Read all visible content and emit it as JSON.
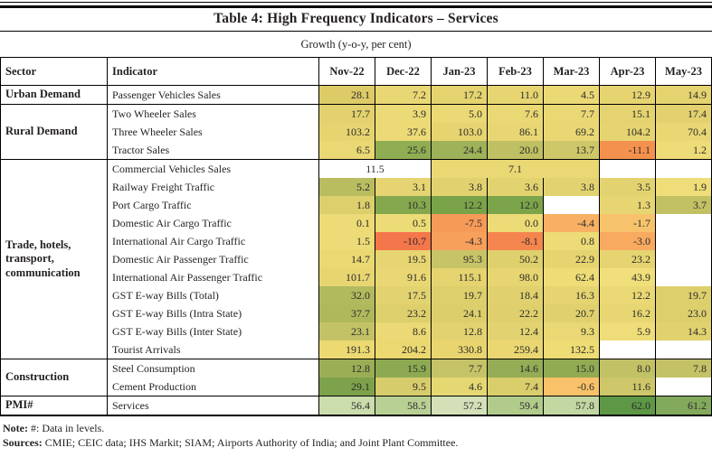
{
  "title": "Table 4: High Frequency Indicators – Services",
  "subtitle": "Growth (y-o-y, per cent)",
  "colors": {
    "border": "#000000",
    "text": "#231f20",
    "heat_green_dark": "#5e9745",
    "heat_green": "#7da24b",
    "heat_olive": "#b2ba5e",
    "heat_yellow": "#e7d571",
    "heat_orange": "#f5914e",
    "heat_red_orange": "#f4764b"
  },
  "table": {
    "columns": [
      "Sector",
      "Indicator",
      "Nov-22",
      "Dec-22",
      "Jan-23",
      "Feb-23",
      "Mar-23",
      "Apr-23",
      "May-23"
    ],
    "groups": [
      {
        "sector": "Urban Demand",
        "rows": [
          {
            "indicator": "Passenger Vehicles Sales",
            "cells": [
              {
                "value": "28.1",
                "color": "#ddcb68"
              },
              {
                "value": "7.2",
                "color": "#e9d773"
              },
              {
                "value": "17.2",
                "color": "#e4d36f"
              },
              {
                "value": "11.0",
                "color": "#e7d571"
              },
              {
                "value": "4.5",
                "color": "#ebd975"
              },
              {
                "value": "12.9",
                "color": "#e6d470"
              },
              {
                "value": "14.9",
                "color": "#e5d370"
              }
            ]
          }
        ]
      },
      {
        "sector": "Rural Demand",
        "rows": [
          {
            "indicator": "Two Wheeler Sales",
            "cells": [
              {
                "value": "17.7",
                "color": "#e2d16e"
              },
              {
                "value": "3.9",
                "color": "#ecda76"
              },
              {
                "value": "5.0",
                "color": "#ebd975"
              },
              {
                "value": "7.6",
                "color": "#ead874"
              },
              {
                "value": "7.7",
                "color": "#ead874"
              },
              {
                "value": "15.1",
                "color": "#e4d370"
              },
              {
                "value": "17.4",
                "color": "#e2d16e"
              }
            ]
          },
          {
            "indicator": "Three Wheeler Sales",
            "cells": [
              {
                "value": "103.2",
                "color": "#e6d471"
              },
              {
                "value": "37.6",
                "color": "#ecda76"
              },
              {
                "value": "103.0",
                "color": "#e6d471"
              },
              {
                "value": "86.1",
                "color": "#e8d673"
              },
              {
                "value": "69.2",
                "color": "#e9d774"
              },
              {
                "value": "104.2",
                "color": "#e6d471"
              },
              {
                "value": "70.4",
                "color": "#e9d774"
              }
            ]
          },
          {
            "indicator": "Tractor Sales",
            "cells": [
              {
                "value": "6.5",
                "color": "#e9d873"
              },
              {
                "value": "25.6",
                "color": "#8fae53"
              },
              {
                "value": "24.4",
                "color": "#9eb259"
              },
              {
                "value": "20.0",
                "color": "#bfbf63"
              },
              {
                "value": "13.7",
                "color": "#cdc769"
              },
              {
                "value": "-11.1",
                "color": "#f5914e"
              },
              {
                "value": "1.2",
                "color": "#eddc77"
              }
            ]
          }
        ]
      },
      {
        "sector": "Trade, hotels, transport, communication",
        "rows": [
          {
            "indicator": "Commercial Vehicles Sales",
            "merged": [
              {
                "span": 2,
                "value": "11.5",
                "color": null
              },
              {
                "span": 3,
                "value": "7.1",
                "color": "#e9d873"
              },
              {
                "span": 1,
                "value": "",
                "color": null
              },
              {
                "span": 1,
                "value": "",
                "color": null
              }
            ]
          },
          {
            "indicator": "Railway Freight Traffic",
            "cells": [
              {
                "value": "5.2",
                "color": "#b9bd60"
              },
              {
                "value": "3.1",
                "color": "#e5d471"
              },
              {
                "value": "3.8",
                "color": "#e2d26f"
              },
              {
                "value": "3.6",
                "color": "#e3d370"
              },
              {
                "value": "3.8",
                "color": "#e3d370"
              },
              {
                "value": "3.5",
                "color": "#e3d370"
              },
              {
                "value": "1.9",
                "color": "#eedd78"
              }
            ]
          },
          {
            "indicator": "Port Cargo Traffic",
            "cells": [
              {
                "value": "1.8",
                "color": "#dccf6c"
              },
              {
                "value": "10.3",
                "color": "#85a84e"
              },
              {
                "value": "12.2",
                "color": "#7aa349"
              },
              {
                "value": "12.0",
                "color": "#7ca44b"
              },
              null,
              {
                "value": "1.3",
                "color": "#e7d572"
              },
              {
                "value": "3.7",
                "color": "#c2c164"
              }
            ]
          },
          {
            "indicator": "Domestic Air Cargo Traffic",
            "cells": [
              {
                "value": "0.1",
                "color": "#ecdb76"
              },
              {
                "value": "0.5",
                "color": "#ecdb76"
              },
              {
                "value": "-7.5",
                "color": "#f69a58"
              },
              {
                "value": "0.0",
                "color": "#ecdb76"
              },
              {
                "value": "-4.4",
                "color": "#f8b164"
              },
              {
                "value": "-1.7",
                "color": "#f6c36c"
              },
              null
            ]
          },
          {
            "indicator": "International Air Cargo Traffic",
            "cells": [
              {
                "value": "1.5",
                "color": "#ecdb76"
              },
              {
                "value": "-10.7",
                "color": "#f4764b"
              },
              {
                "value": "-4.3",
                "color": "#f7a05c"
              },
              {
                "value": "-8.1",
                "color": "#f5854f"
              },
              {
                "value": "0.8",
                "color": "#ecdb76"
              },
              {
                "value": "-3.0",
                "color": "#f8aa60"
              },
              null
            ]
          },
          {
            "indicator": "Domestic Air Passenger Traffic",
            "cells": [
              {
                "value": "14.7",
                "color": "#ead873"
              },
              {
                "value": "19.5",
                "color": "#e6d571"
              },
              {
                "value": "95.3",
                "color": "#c6c467"
              },
              {
                "value": "50.2",
                "color": "#ded06c"
              },
              {
                "value": "22.9",
                "color": "#e5d470"
              },
              {
                "value": "23.2",
                "color": "#e5d470"
              },
              null
            ]
          },
          {
            "indicator": "International Air Passenger Traffic",
            "cells": [
              {
                "value": "101.7",
                "color": "#e7d571"
              },
              {
                "value": "91.6",
                "color": "#e9d773"
              },
              {
                "value": "115.1",
                "color": "#e4d36f"
              },
              {
                "value": "98.0",
                "color": "#e7d571"
              },
              {
                "value": "62.4",
                "color": "#eedc77"
              },
              {
                "value": "43.9",
                "color": "#f0df7a"
              },
              null
            ]
          },
          {
            "indicator": "GST E-way Bills (Total)",
            "cells": [
              {
                "value": "32.0",
                "color": "#b2ba5e"
              },
              {
                "value": "17.5",
                "color": "#e3d370"
              },
              {
                "value": "19.7",
                "color": "#ddcf6c"
              },
              {
                "value": "18.4",
                "color": "#e1d16e"
              },
              {
                "value": "16.3",
                "color": "#e5d471"
              },
              {
                "value": "12.2",
                "color": "#e9d873"
              },
              {
                "value": "19.7",
                "color": "#ddcf6c"
              }
            ]
          },
          {
            "indicator": "GST E-way Bills (Intra State)",
            "cells": [
              {
                "value": "37.7",
                "color": "#afb95c"
              },
              {
                "value": "23.2",
                "color": "#ddcf6c"
              },
              {
                "value": "24.1",
                "color": "#dcce6b"
              },
              {
                "value": "22.2",
                "color": "#dfd06d"
              },
              {
                "value": "20.7",
                "color": "#e0d16e"
              },
              {
                "value": "16.2",
                "color": "#e7d672"
              },
              {
                "value": "23.0",
                "color": "#ddcf6c"
              }
            ]
          },
          {
            "indicator": "GST E-way Bills (Inter State)",
            "cells": [
              {
                "value": "23.1",
                "color": "#c4c266"
              },
              {
                "value": "8.6",
                "color": "#ead974"
              },
              {
                "value": "12.8",
                "color": "#e3d370"
              },
              {
                "value": "12.4",
                "color": "#e3d370"
              },
              {
                "value": "9.3",
                "color": "#e9d873"
              },
              {
                "value": "5.9",
                "color": "#eedd78"
              },
              {
                "value": "14.3",
                "color": "#e1d26f"
              }
            ]
          },
          {
            "indicator": "Tourist Arrivals",
            "cells": [
              {
                "value": "191.3",
                "color": "#ecd972"
              },
              {
                "value": "204.2",
                "color": "#ebd871"
              },
              {
                "value": "330.8",
                "color": "#e9d56f"
              },
              {
                "value": "259.4",
                "color": "#ead771"
              },
              {
                "value": "132.5",
                "color": "#eedc74"
              },
              null,
              null
            ]
          }
        ]
      },
      {
        "sector": "Construction",
        "rows": [
          {
            "indicator": "Steel Consumption",
            "cells": [
              {
                "value": "12.8",
                "color": "#9bae56"
              },
              {
                "value": "15.9",
                "color": "#8daa52"
              },
              {
                "value": "7.7",
                "color": "#c5c367"
              },
              {
                "value": "14.6",
                "color": "#94ac55"
              },
              {
                "value": "15.0",
                "color": "#91ab53"
              },
              {
                "value": "8.0",
                "color": "#c2c166"
              },
              {
                "value": "7.8",
                "color": "#c4c267"
              }
            ]
          },
          {
            "indicator": "Cement Production",
            "cells": [
              {
                "value": "29.1",
                "color": "#7da24b"
              },
              {
                "value": "9.5",
                "color": "#d7cc6b"
              },
              {
                "value": "4.6",
                "color": "#e5d873"
              },
              {
                "value": "7.4",
                "color": "#d9cd6c"
              },
              {
                "value": "-0.6",
                "color": "#f9c169"
              },
              {
                "value": "11.6",
                "color": "#cdc76a"
              },
              null
            ]
          }
        ]
      },
      {
        "sector": "PMI#",
        "rows": [
          {
            "indicator": "Services",
            "cells": [
              {
                "value": "56.4",
                "color": "#cbdcad"
              },
              {
                "value": "58.5",
                "color": "#b9d094"
              },
              {
                "value": "57.2",
                "color": "#d3e0b8"
              },
              {
                "value": "59.4",
                "color": "#b1cb8b"
              },
              {
                "value": "57.8",
                "color": "#c3d7a2"
              },
              {
                "value": "62.0",
                "color": "#5e9745"
              },
              {
                "value": "61.2",
                "color": "#82a95c"
              }
            ]
          }
        ]
      }
    ]
  },
  "notes": {
    "note_label": "Note:",
    "note_text": "#: Data in levels.",
    "sources_label": "Sources:",
    "sources_text": "CMIE; CEIC data; IHS Markit; SIAM; Airports Authority of India; and Joint Plant Committee."
  }
}
